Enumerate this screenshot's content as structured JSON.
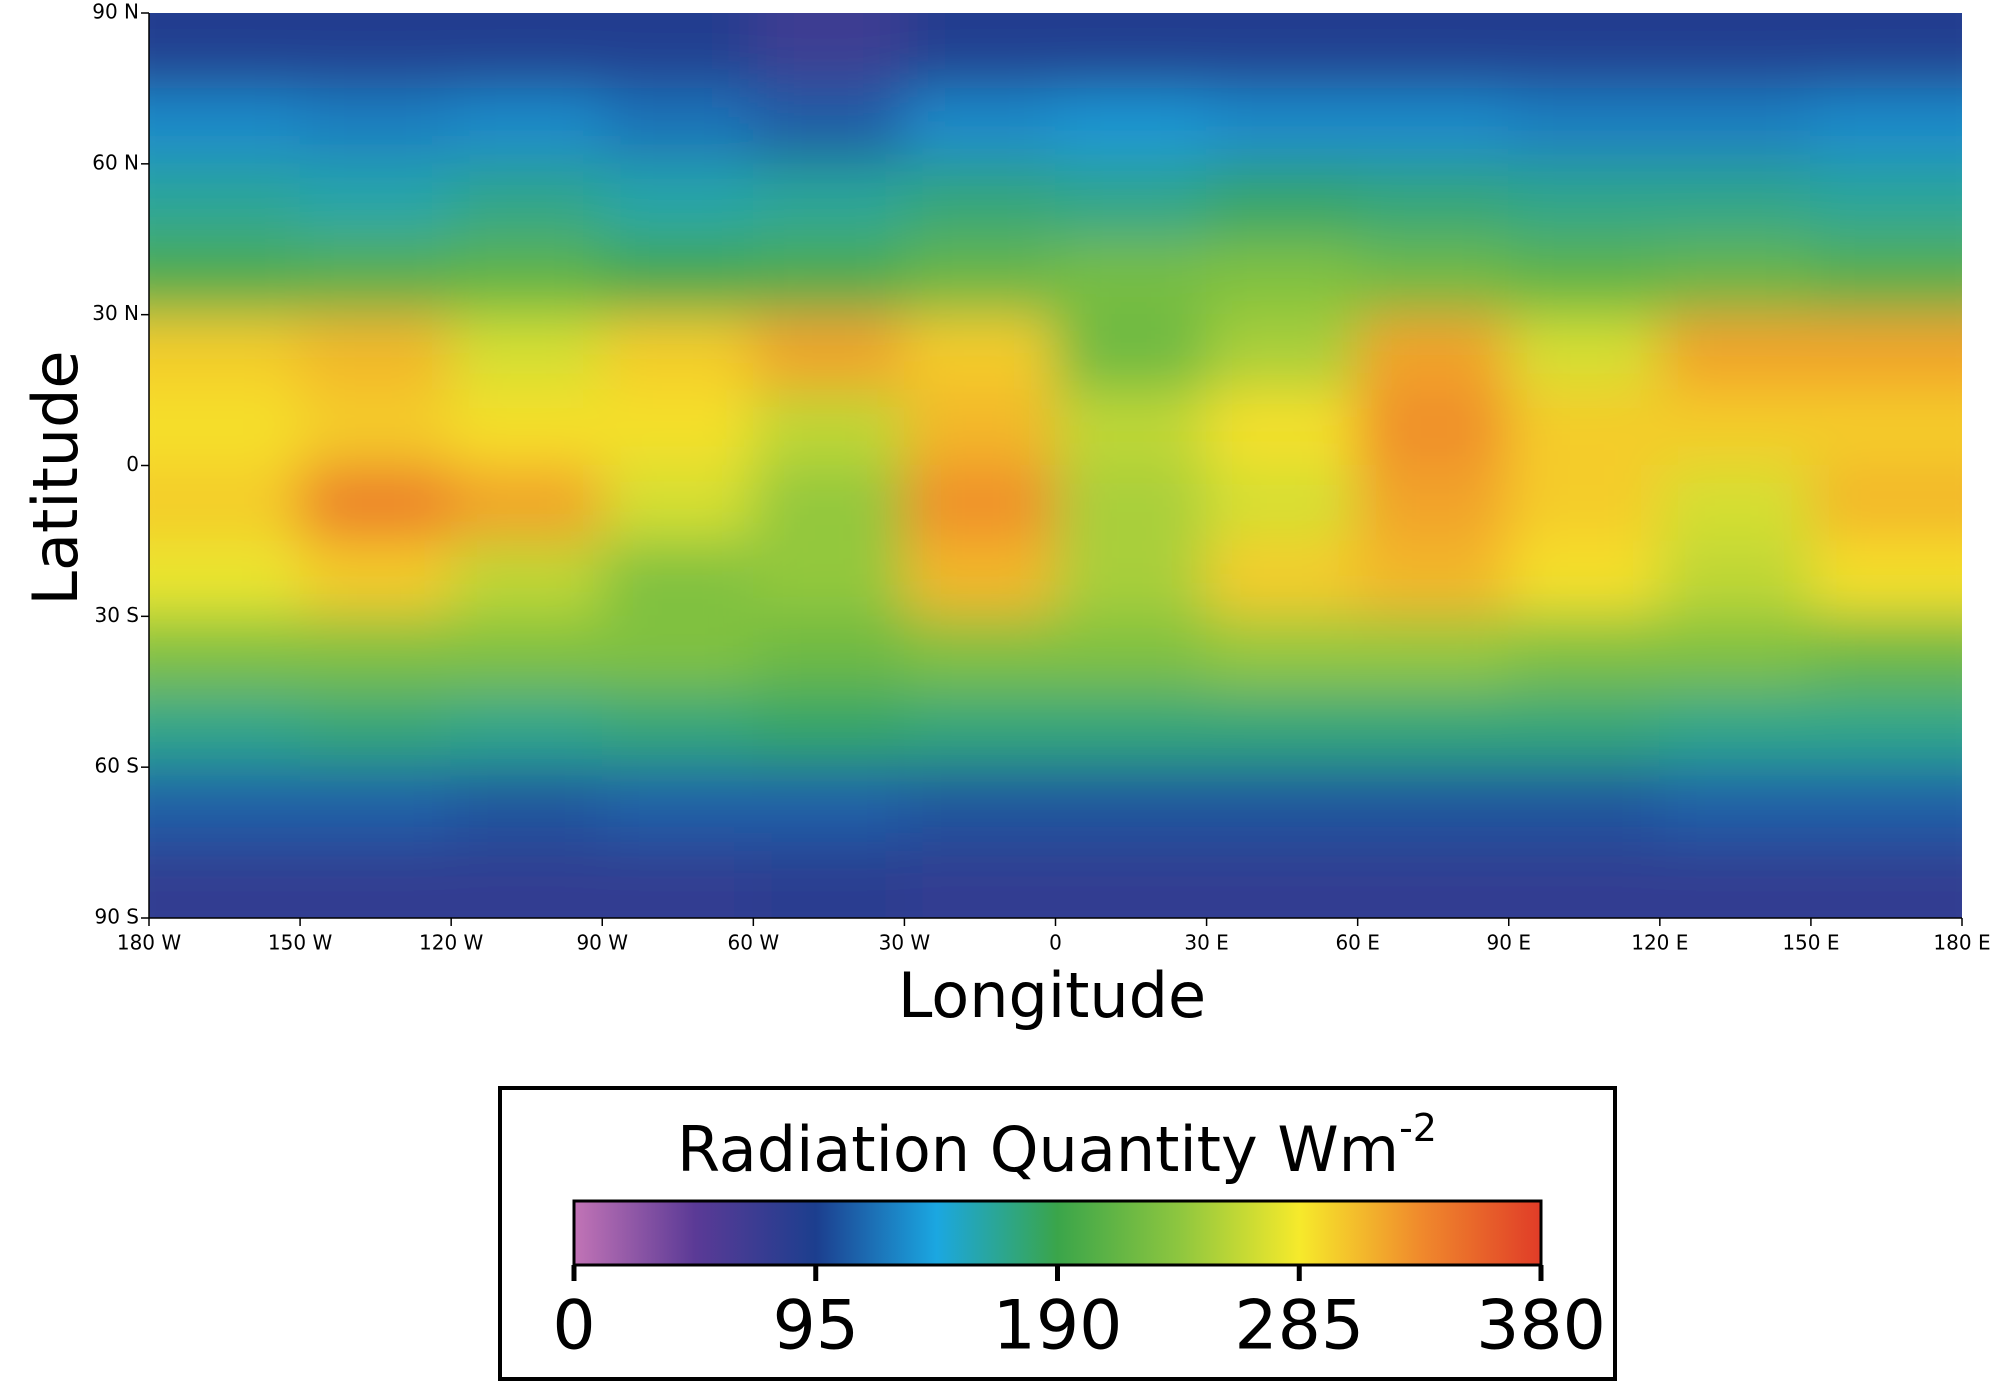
{
  "chart_data": {
    "type": "heatmap",
    "xlabel": "Longitude",
    "ylabel": "Latitude",
    "xlim": [
      -180,
      180
    ],
    "ylim": [
      -90,
      90
    ],
    "xticks": [
      {
        "value": -180,
        "label": "180 W"
      },
      {
        "value": -150,
        "label": "150 W"
      },
      {
        "value": -120,
        "label": "120 W"
      },
      {
        "value": -90,
        "label": "90 W"
      },
      {
        "value": -60,
        "label": "60 W"
      },
      {
        "value": -30,
        "label": "30 W"
      },
      0,
      {
        "value": 30,
        "label": "30 E"
      },
      {
        "value": 60,
        "label": "60 E"
      },
      {
        "value": 90,
        "label": "90 E"
      },
      {
        "value": 120,
        "label": "120 E"
      },
      {
        "value": 150,
        "label": "150 E"
      },
      {
        "value": 180,
        "label": "180 E"
      }
    ],
    "yticks": [
      {
        "value": 90,
        "label": "90 N"
      },
      {
        "value": 60,
        "label": "60 N"
      },
      {
        "value": 30,
        "label": "30 N"
      },
      0,
      {
        "value": -30,
        "label": "30 S"
      },
      {
        "value": -60,
        "label": "60 S"
      },
      {
        "value": -90,
        "label": "90 S"
      }
    ],
    "x": [
      -165,
      -135,
      -105,
      -75,
      -45,
      -15,
      15,
      45,
      75,
      105,
      135,
      165
    ],
    "y": [
      82.5,
      67.5,
      52.5,
      37.5,
      22.5,
      7.5,
      -7.5,
      -22.5,
      -37.5,
      -52.5,
      -67.5,
      -82.5
    ],
    "z": [
      [
        90,
        90,
        90,
        90,
        70,
        90,
        90,
        90,
        90,
        90,
        90,
        90
      ],
      [
        130,
        125,
        130,
        120,
        110,
        130,
        135,
        130,
        130,
        125,
        125,
        130
      ],
      [
        165,
        160,
        170,
        160,
        165,
        175,
        170,
        180,
        175,
        170,
        170,
        165
      ],
      [
        200,
        205,
        210,
        195,
        200,
        215,
        225,
        230,
        220,
        210,
        215,
        205
      ],
      [
        300,
        310,
        270,
        300,
        320,
        300,
        220,
        250,
        320,
        270,
        320,
        320
      ],
      [
        290,
        300,
        290,
        290,
        260,
        310,
        260,
        290,
        330,
        300,
        300,
        300
      ],
      [
        300,
        340,
        320,
        270,
        240,
        330,
        250,
        270,
        320,
        300,
        270,
        310
      ],
      [
        280,
        300,
        260,
        230,
        240,
        310,
        250,
        300,
        310,
        290,
        260,
        290
      ],
      [
        230,
        230,
        230,
        230,
        220,
        230,
        230,
        240,
        240,
        230,
        230,
        220
      ],
      [
        170,
        175,
        170,
        175,
        180,
        175,
        175,
        175,
        175,
        175,
        170,
        170
      ],
      [
        110,
        110,
        105,
        110,
        110,
        105,
        105,
        105,
        105,
        105,
        110,
        110
      ],
      [
        80,
        80,
        80,
        80,
        85,
        80,
        80,
        80,
        80,
        80,
        80,
        80
      ]
    ],
    "colorbar": {
      "title": "Radiation Quantity Wm",
      "title_superscript": "-2",
      "zlim": [
        0,
        380
      ],
      "zticks": [
        0,
        95,
        190,
        285,
        380
      ],
      "colors": [
        "#c274b6",
        "#5b3a96",
        "#1c3e8e",
        "#1ba7e1",
        "#3aa54a",
        "#8dc63f",
        "#f6ea2b",
        "#f08a2c",
        "#e03c28"
      ]
    }
  }
}
